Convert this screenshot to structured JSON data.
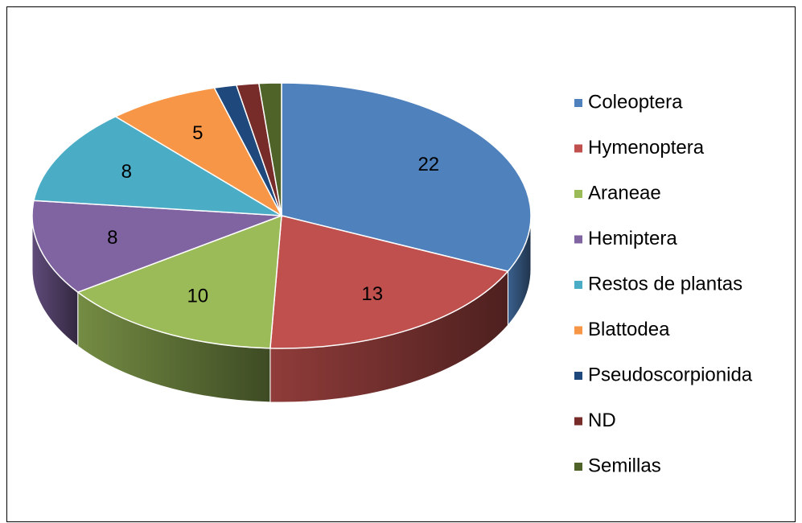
{
  "chart_data": {
    "type": "pie3d",
    "categories": [
      "Coleoptera",
      "Hymenoptera",
      "Araneae",
      "Hemiptera",
      "Restos de plantas",
      "Blattodea",
      "Pseudoscorpionida",
      "ND",
      "Semillas"
    ],
    "values": [
      22,
      13,
      10,
      8,
      8,
      5,
      1,
      1,
      1
    ],
    "colors": [
      "#4f81bd",
      "#c0504d",
      "#9bbb59",
      "#8064a2",
      "#4bacc6",
      "#f79646",
      "#1f497d",
      "#772c2a",
      "#4f6228"
    ],
    "legend": "right"
  }
}
